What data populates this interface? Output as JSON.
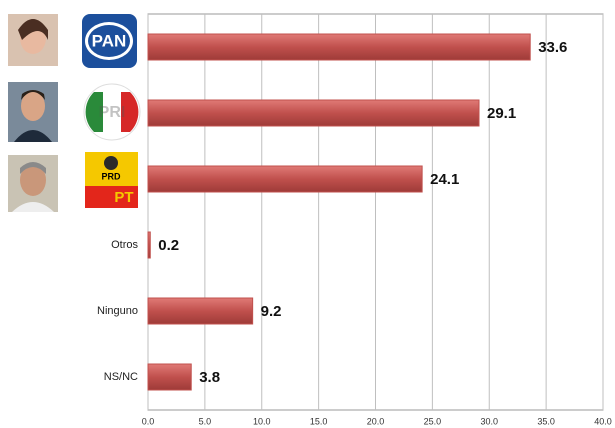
{
  "chart_data": {
    "type": "bar",
    "orientation": "horizontal",
    "categories": [
      null,
      null,
      null,
      "Otros",
      "Ninguno",
      "NS/NC"
    ],
    "values": [
      33.6,
      29.1,
      24.1,
      0.2,
      9.2,
      3.8
    ],
    "color": "#c0504d",
    "logo_texts": [
      "PAN",
      "PRI",
      "PRD",
      "PT"
    ],
    "xlim": [
      0,
      40
    ],
    "xticks": [
      {
        "value": 0,
        "label": "0.0"
      },
      {
        "value": 5,
        "label": "5.0"
      },
      {
        "value": 10,
        "label": "10.0"
      },
      {
        "value": 15,
        "label": "15.0"
      },
      {
        "value": 20,
        "label": "20.0"
      },
      {
        "value": 25,
        "label": "25.0"
      },
      {
        "value": 30,
        "label": "30.0"
      },
      {
        "value": 35,
        "label": "35.0"
      },
      {
        "value": 40,
        "label": "40.0"
      }
    ],
    "grid": true
  }
}
